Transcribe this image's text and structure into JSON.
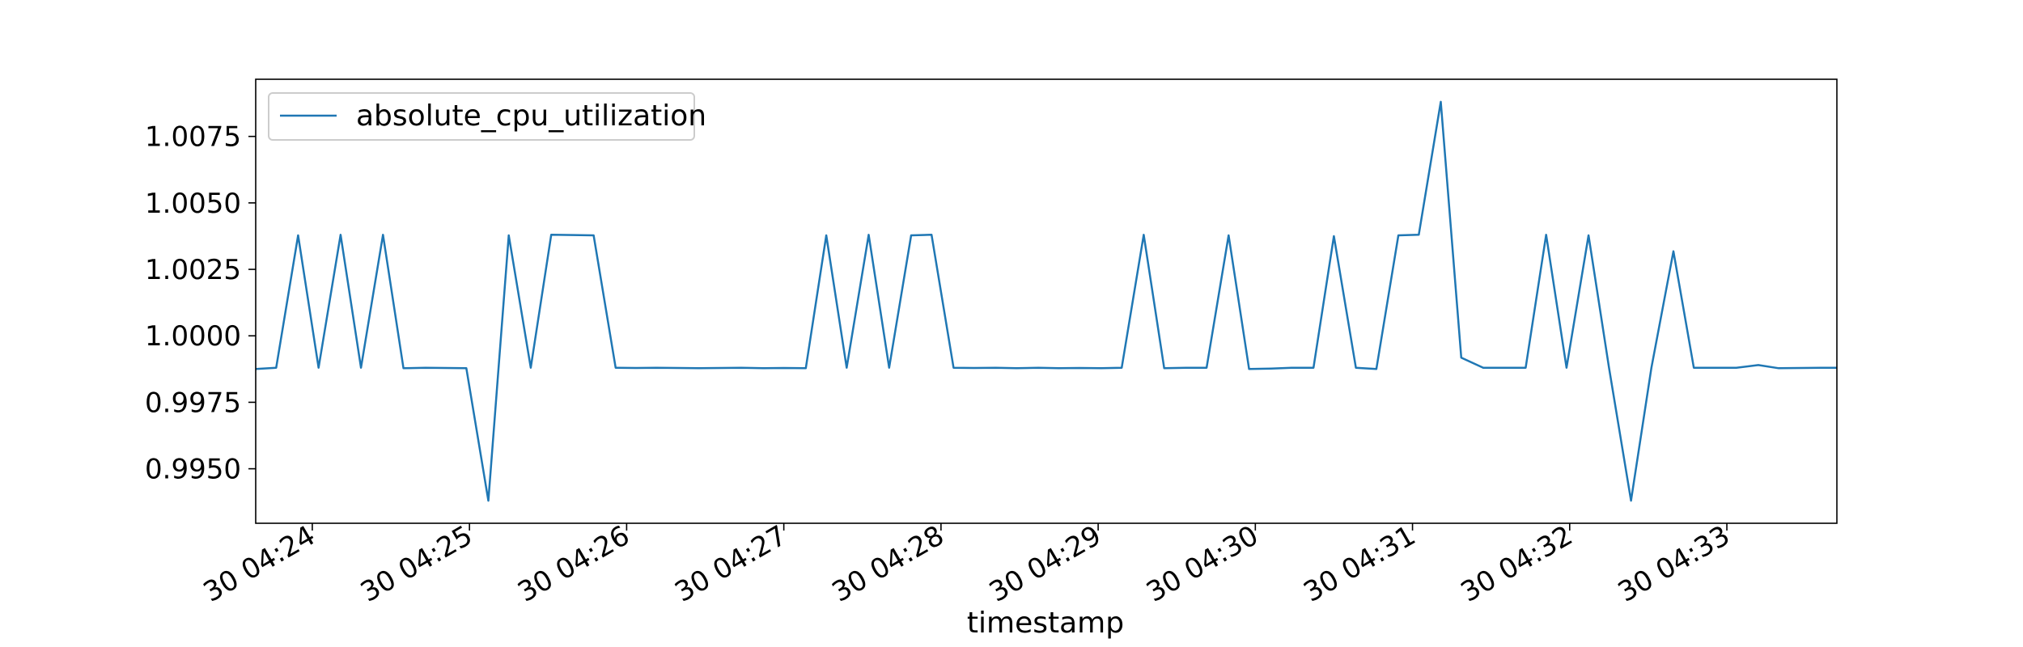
{
  "chart_data": {
    "type": "line",
    "title": "",
    "xlabel": "timestamp",
    "ylabel": "",
    "legend": {
      "placement": "top-left",
      "entries": [
        "absolute_cpu_utilization"
      ]
    },
    "grid": false,
    "xlim_minutes": [
      23.64,
      33.7
    ],
    "ylim": [
      0.99295,
      1.00965
    ],
    "xticks": [
      {
        "minute": 24,
        "label": "30 04:24"
      },
      {
        "minute": 25,
        "label": "30 04:25"
      },
      {
        "minute": 26,
        "label": "30 04:26"
      },
      {
        "minute": 27,
        "label": "30 04:27"
      },
      {
        "minute": 28,
        "label": "30 04:28"
      },
      {
        "minute": 29,
        "label": "30 04:29"
      },
      {
        "minute": 30,
        "label": "30 04:30"
      },
      {
        "minute": 31,
        "label": "30 04:31"
      },
      {
        "minute": 32,
        "label": "30 04:32"
      },
      {
        "minute": 33,
        "label": "30 04:33"
      }
    ],
    "yticks": [
      {
        "value": 0.995,
        "label": "0.9950"
      },
      {
        "value": 0.9975,
        "label": "0.9975"
      },
      {
        "value": 1.0,
        "label": "1.0000"
      },
      {
        "value": 1.0025,
        "label": "1.0025"
      },
      {
        "value": 1.005,
        "label": "1.0050"
      },
      {
        "value": 1.0075,
        "label": "1.0075"
      }
    ],
    "series": [
      {
        "name": "absolute_cpu_utilization",
        "color": "#1f77b4",
        "x_minutes": [
          23.64,
          23.77,
          23.91,
          24.04,
          24.18,
          24.31,
          24.45,
          24.58,
          24.72,
          24.85,
          24.98,
          25.12,
          25.25,
          25.39,
          25.52,
          25.66,
          25.79,
          25.93,
          26.06,
          26.19,
          26.33,
          26.46,
          26.6,
          26.73,
          26.87,
          27.0,
          27.14,
          27.27,
          27.4,
          27.54,
          27.67,
          27.81,
          27.94,
          28.08,
          28.21,
          28.35,
          28.48,
          28.62,
          28.75,
          28.88,
          29.02,
          29.15,
          29.29,
          29.42,
          29.56,
          29.69,
          29.83,
          29.96,
          30.1,
          30.23,
          30.37,
          30.5,
          30.64,
          30.77,
          30.91,
          31.04,
          31.18,
          31.31,
          31.45,
          31.58,
          31.72,
          31.85,
          31.98,
          32.12,
          32.25,
          32.39,
          32.52,
          32.66,
          32.79,
          32.93,
          33.06,
          33.2,
          33.33,
          33.47,
          33.6,
          33.7
        ],
        "y": [
          0.99875,
          0.9988,
          1.00378,
          0.9988,
          1.0038,
          0.9988,
          1.0038,
          0.99878,
          0.9988,
          0.99879,
          0.99878,
          0.9938,
          1.00378,
          0.9988,
          1.0038,
          1.00379,
          1.00378,
          0.9988,
          0.99879,
          0.9988,
          0.99879,
          0.99878,
          0.99879,
          0.9988,
          0.99878,
          0.99879,
          0.99878,
          1.00378,
          0.9988,
          1.0038,
          0.9988,
          1.00378,
          1.0038,
          0.9988,
          0.99879,
          0.9988,
          0.99878,
          0.9988,
          0.99878,
          0.99879,
          0.99878,
          0.9988,
          1.0038,
          0.99878,
          0.9988,
          0.9988,
          1.00378,
          0.99875,
          0.99877,
          0.9988,
          0.9988,
          1.00375,
          0.9988,
          0.99875,
          1.00378,
          1.0038,
          1.0088,
          0.99918,
          0.9988,
          0.9988,
          0.9988,
          1.0038,
          0.9988,
          1.00378,
          0.9988,
          0.9938,
          0.9988,
          1.00318,
          0.9988,
          0.9988,
          0.9988,
          0.9989,
          0.99878,
          0.99879,
          0.9988,
          0.9988
        ]
      }
    ]
  }
}
